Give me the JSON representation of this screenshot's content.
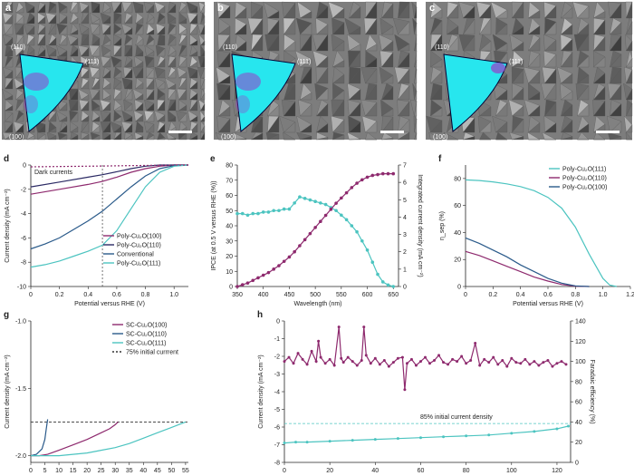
{
  "colors": {
    "purple": "#8e2a6e",
    "purple_light": "#b4509b",
    "teal": "#4cc4c0",
    "blue_dark": "#2a5a8a",
    "navy": "#2b2a64",
    "sem_grey": "#8a8a8a",
    "map_cyan": "#27e6ee",
    "map_magenta": "#9a3cc8"
  },
  "sem_panels": [
    {
      "letter": "a",
      "label_110": "(110)",
      "label_111": "(111)",
      "label_100": "(100)"
    },
    {
      "letter": "b",
      "label_110": "(110)",
      "label_111": "(111)",
      "label_100": "(100)"
    },
    {
      "letter": "c",
      "label_110": "(110)",
      "label_111": "(111)",
      "label_100": "(100)"
    }
  ],
  "chart_data": [
    {
      "panel": "d",
      "type": "line",
      "xlabel": "Potential versus RHE (V)",
      "ylabel": "Current density (mA cm⁻²)",
      "xlim": [
        0,
        1.1
      ],
      "ylim": [
        -10,
        0
      ],
      "xticks": [
        "0",
        "0.2",
        "0.4",
        "0.6",
        "0.8",
        "1.0"
      ],
      "yticks": [
        "0",
        "-2",
        "-4",
        "-6",
        "-8",
        "-10"
      ],
      "annotation": "Dark currents",
      "legend": [
        "Poly-Cu₂O(100)",
        "Poly-Cu₂O(110)",
        "Conventional",
        "Poly-Cu₂O(111)"
      ],
      "vline_x": 0.5,
      "series": [
        {
          "name": "Poly-Cu₂O(100)",
          "color": "purple",
          "x": [
            0,
            0.2,
            0.4,
            0.5,
            0.6,
            0.7,
            0.8,
            0.9,
            1.0,
            1.1
          ],
          "y": [
            -2.4,
            -2.0,
            -1.6,
            -1.35,
            -1.0,
            -0.6,
            -0.3,
            -0.1,
            0,
            0
          ]
        },
        {
          "name": "Poly-Cu₂O(110)",
          "color": "navy",
          "x": [
            0,
            0.2,
            0.4,
            0.5,
            0.6,
            0.7,
            0.8,
            0.9,
            1.0,
            1.1
          ],
          "y": [
            -1.8,
            -1.4,
            -1.0,
            -0.8,
            -0.55,
            -0.3,
            -0.1,
            0,
            0,
            0
          ]
        },
        {
          "name": "Conventional",
          "color": "blue_dark",
          "x": [
            0,
            0.1,
            0.2,
            0.3,
            0.4,
            0.5,
            0.6,
            0.7,
            0.8,
            0.9,
            1.0,
            1.1
          ],
          "y": [
            -6.9,
            -6.5,
            -6.0,
            -5.3,
            -4.6,
            -3.8,
            -2.8,
            -1.8,
            -0.9,
            -0.3,
            -0.05,
            0
          ]
        },
        {
          "name": "Poly-Cu₂O(111)",
          "color": "teal",
          "x": [
            0,
            0.1,
            0.2,
            0.3,
            0.4,
            0.5,
            0.6,
            0.7,
            0.8,
            0.9,
            1.0,
            1.1
          ],
          "y": [
            -8.4,
            -8.2,
            -7.9,
            -7.5,
            -7.1,
            -6.6,
            -5.4,
            -3.6,
            -1.8,
            -0.6,
            -0.1,
            0
          ]
        },
        {
          "name": "",
          "color": "purple",
          "dashed": true,
          "x": [
            0,
            0.4,
            0.7,
            1.0,
            1.1
          ],
          "y": [
            -0.15,
            -0.1,
            -0.05,
            0,
            0
          ]
        }
      ]
    },
    {
      "panel": "e",
      "type": "line",
      "xlabel": "Wavelength (nm)",
      "ylabel": "IPCE (at 0.5 V versus RHE (%))",
      "ylabel_right": "Integrated current density (mA cm⁻²)",
      "xlim": [
        350,
        660
      ],
      "ylim": [
        0,
        80
      ],
      "ylim_right": [
        0,
        7
      ],
      "xticks": [
        "350",
        "400",
        "450",
        "500",
        "550",
        "600",
        "650"
      ],
      "yticks": [
        "0",
        "10",
        "20",
        "30",
        "40",
        "50",
        "60",
        "70",
        "80"
      ],
      "yticks_right": [
        "0",
        "1",
        "2",
        "3",
        "4",
        "5",
        "6",
        "7"
      ],
      "series": [
        {
          "name": "IPCE",
          "color": "teal",
          "axis": "left",
          "x": [
            350,
            360,
            370,
            380,
            390,
            400,
            410,
            420,
            430,
            440,
            450,
            460,
            470,
            480,
            490,
            500,
            510,
            520,
            530,
            540,
            550,
            560,
            570,
            580,
            590,
            600,
            610,
            620,
            630,
            640,
            650
          ],
          "y": [
            48,
            48,
            47,
            48,
            48,
            49,
            49,
            50,
            50,
            51,
            51,
            55,
            59,
            58,
            57,
            56,
            55,
            54,
            52,
            50,
            47,
            44,
            40,
            36,
            30,
            24,
            16,
            8,
            3,
            1,
            0
          ]
        },
        {
          "name": "Integrated current density",
          "color": "purple",
          "axis": "right",
          "x": [
            350,
            360,
            370,
            380,
            390,
            400,
            410,
            420,
            430,
            440,
            450,
            460,
            470,
            480,
            490,
            500,
            510,
            520,
            530,
            540,
            550,
            560,
            570,
            580,
            590,
            600,
            610,
            620,
            630,
            640,
            650
          ],
          "y": [
            0,
            0.1,
            0.2,
            0.35,
            0.5,
            0.65,
            0.8,
            1.0,
            1.2,
            1.45,
            1.7,
            2.0,
            2.35,
            2.7,
            3.05,
            3.4,
            3.75,
            4.1,
            4.45,
            4.8,
            5.1,
            5.4,
            5.7,
            5.95,
            6.15,
            6.3,
            6.4,
            6.45,
            6.5,
            6.5,
            6.5
          ]
        }
      ]
    },
    {
      "panel": "f",
      "type": "line",
      "xlabel": "Potential versus RHE (V)",
      "ylabel": "η_sep (%)",
      "xlim": [
        0,
        1.2
      ],
      "ylim": [
        0,
        90
      ],
      "xticks": [
        "0",
        "0.2",
        "0.4",
        "0.6",
        "0.8",
        "1.0",
        "1.2"
      ],
      "yticks": [
        "0",
        "20",
        "40",
        "60",
        "80"
      ],
      "legend": [
        "Poly-Cu₂O(111)",
        "Poly-Cu₂O(110)",
        "Poly-Cu₂O(100)"
      ],
      "series": [
        {
          "name": "Poly-Cu₂O(111)",
          "color": "teal",
          "x": [
            0,
            0.1,
            0.2,
            0.3,
            0.4,
            0.5,
            0.6,
            0.7,
            0.8,
            0.9,
            1.0,
            1.05,
            1.1
          ],
          "y": [
            79,
            78.5,
            77.5,
            76,
            74,
            71,
            66,
            58,
            44,
            24,
            6,
            1,
            0
          ]
        },
        {
          "name": "Poly-Cu₂O(110)",
          "color": "purple",
          "x": [
            0,
            0.1,
            0.2,
            0.3,
            0.4,
            0.5,
            0.6,
            0.7,
            0.8,
            0.9
          ],
          "y": [
            26,
            23,
            19,
            15,
            11,
            7,
            4,
            1.5,
            0.3,
            0
          ]
        },
        {
          "name": "Poly-Cu₂O(100)",
          "color": "blue_dark",
          "x": [
            0,
            0.1,
            0.2,
            0.3,
            0.4,
            0.5,
            0.6,
            0.7,
            0.8,
            0.9
          ],
          "y": [
            36,
            32,
            27,
            22,
            16,
            11,
            6,
            2.5,
            0.5,
            0
          ]
        }
      ]
    },
    {
      "panel": "g",
      "type": "line",
      "xlabel": "Time (h)",
      "ylabel": "Current density (mA cm⁻²)",
      "xlim": [
        0,
        56
      ],
      "ylim": [
        -2.05,
        -1.0
      ],
      "xticks": [
        "0",
        "5",
        "10",
        "15",
        "20",
        "25",
        "30",
        "35",
        "40",
        "45",
        "50",
        "55"
      ],
      "yticks": [
        "-1.0",
        "-1.5",
        "-2.0"
      ],
      "legend": [
        "SC-Cu₂O(100)",
        "SC-Cu₂O(110)",
        "SC-Cu₂O(111)",
        "75% initial currrent"
      ],
      "hline_y": -1.75,
      "series": [
        {
          "name": "SC-Cu₂O(100)",
          "color": "purple",
          "x": [
            0,
            3,
            6,
            10,
            15,
            20,
            25,
            28,
            30,
            31
          ],
          "y": [
            -2.0,
            -2.0,
            -1.99,
            -1.96,
            -1.92,
            -1.88,
            -1.83,
            -1.8,
            -1.77,
            -1.75
          ]
        },
        {
          "name": "SC-Cu₂O(110)",
          "color": "blue_dark",
          "x": [
            0,
            2,
            4,
            5,
            5.5,
            6
          ],
          "y": [
            -2.0,
            -1.99,
            -1.95,
            -1.88,
            -1.8,
            -1.73
          ]
        },
        {
          "name": "SC-Cu₂O(111)",
          "color": "teal",
          "x": [
            0,
            5,
            10,
            15,
            20,
            25,
            30,
            35,
            40,
            45,
            50,
            55
          ],
          "y": [
            -2.0,
            -2.0,
            -2.0,
            -1.99,
            -1.98,
            -1.96,
            -1.94,
            -1.91,
            -1.87,
            -1.83,
            -1.79,
            -1.75
          ]
        }
      ]
    },
    {
      "panel": "h",
      "type": "line",
      "xlabel": "Time (h)",
      "ylabel": "Current density (mA cm⁻²)",
      "ylabel_right": "Faradaic efficiency (%)",
      "xlim": [
        0,
        126
      ],
      "ylim": [
        -8,
        0
      ],
      "ylim_right": [
        0,
        140
      ],
      "xticks": [
        "0",
        "20",
        "40",
        "60",
        "80",
        "100",
        "120"
      ],
      "yticks": [
        "0",
        "-1",
        "-2",
        "-3",
        "-4",
        "-5",
        "-6",
        "-7",
        "-8"
      ],
      "yticks_right": [
        "0",
        "20",
        "40",
        "60",
        "80",
        "100",
        "120",
        "140"
      ],
      "annotation": "85% initial current density",
      "hline_y": -5.8,
      "series": [
        {
          "name": "Current density",
          "color": "teal",
          "axis": "left",
          "x": [
            0,
            5,
            10,
            20,
            30,
            40,
            50,
            60,
            70,
            80,
            90,
            100,
            110,
            120,
            125
          ],
          "y": [
            -6.9,
            -6.85,
            -6.85,
            -6.8,
            -6.75,
            -6.7,
            -6.65,
            -6.6,
            -6.55,
            -6.5,
            -6.45,
            -6.35,
            -6.25,
            -6.1,
            -5.95
          ]
        },
        {
          "name": "Faradaic efficiency",
          "color": "purple",
          "axis": "right",
          "x": [
            0,
            2,
            4,
            6,
            8,
            10,
            12,
            14,
            15,
            16,
            18,
            20,
            22,
            24,
            25,
            26,
            28,
            30,
            32,
            34,
            35,
            36,
            38,
            40,
            42,
            44,
            46,
            48,
            50,
            52,
            53,
            54,
            56,
            58,
            60,
            62,
            64,
            66,
            68,
            70,
            72,
            74,
            76,
            78,
            80,
            82,
            84,
            86,
            88,
            90,
            92,
            94,
            96,
            98,
            100,
            102,
            104,
            106,
            108,
            110,
            112,
            114,
            116,
            118,
            120,
            122,
            124
          ],
          "y": [
            100,
            104,
            98,
            108,
            102,
            97,
            110,
            100,
            120,
            104,
            98,
            102,
            96,
            134,
            103,
            99,
            104,
            100,
            96,
            101,
            134,
            106,
            98,
            103,
            97,
            101,
            95,
            99,
            103,
            104,
            72,
            98,
            102,
            96,
            100,
            104,
            98,
            101,
            106,
            99,
            97,
            102,
            100,
            105,
            98,
            101,
            118,
            96,
            102,
            99,
            104,
            97,
            101,
            95,
            103,
            99,
            98,
            102,
            97,
            100,
            96,
            99,
            101,
            95,
            98,
            100,
            97
          ]
        }
      ]
    }
  ]
}
